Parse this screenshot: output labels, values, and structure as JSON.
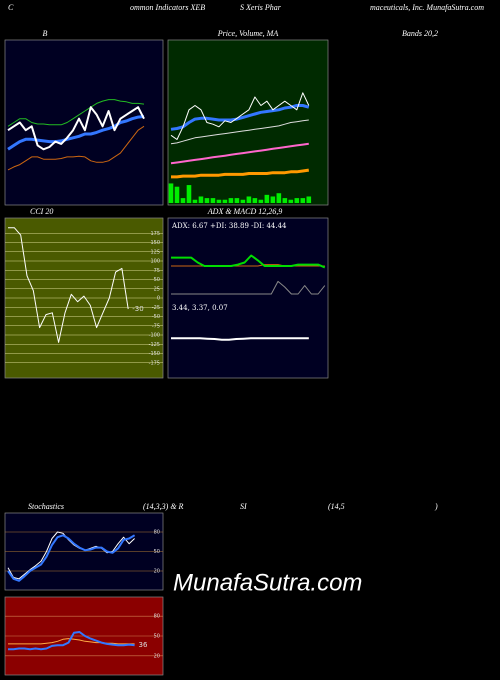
{
  "header": [
    "C",
    "ommon Indicators XEB",
    "S Xeris Phar",
    "maceuticals, Inc. MunafaSutra.com"
  ],
  "watermark": "MunafaSutra.com",
  "chart_data": [
    {
      "type": "line",
      "title_parts": [
        "B",
        "Bands 20,2"
      ],
      "background": "#000022",
      "ylim": [
        2,
        4
      ],
      "series": [
        {
          "color": "#22bb22",
          "width": 1,
          "values": [
            2.95,
            3.0,
            3.05,
            3.05,
            3.0,
            2.98,
            2.98,
            2.97,
            2.97,
            2.97,
            3.0,
            3.05,
            3.1,
            3.15,
            3.2,
            3.25,
            3.28,
            3.3,
            3.3,
            3.28,
            3.27,
            3.25,
            3.25,
            3.24
          ]
        },
        {
          "color": "#3377ff",
          "width": 3,
          "values": [
            2.65,
            2.7,
            2.75,
            2.78,
            2.78,
            2.77,
            2.76,
            2.75,
            2.75,
            2.76,
            2.78,
            2.8,
            2.82,
            2.85,
            2.85,
            2.87,
            2.9,
            2.92,
            2.95,
            3.0,
            3.02,
            3.05,
            3.07,
            3.08
          ]
        },
        {
          "color": "#cc6611",
          "width": 1,
          "values": [
            2.38,
            2.42,
            2.45,
            2.5,
            2.55,
            2.55,
            2.52,
            2.52,
            2.52,
            2.53,
            2.55,
            2.55,
            2.56,
            2.55,
            2.5,
            2.48,
            2.48,
            2.5,
            2.55,
            2.6,
            2.7,
            2.8,
            2.9,
            2.95
          ]
        },
        {
          "color": "#ffffff",
          "width": 2,
          "values": [
            2.9,
            2.95,
            3.0,
            2.9,
            2.95,
            2.7,
            2.65,
            2.68,
            2.75,
            2.72,
            2.8,
            2.9,
            3.05,
            2.9,
            3.2,
            3.1,
            2.95,
            3.15,
            2.9,
            3.05,
            3.1,
            3.15,
            3.2,
            3.05
          ]
        }
      ]
    },
    {
      "type": "line",
      "title_parts": [
        "Price, Volume, MA"
      ],
      "background": "#002a00",
      "ylim": [
        1.8,
        3.6
      ],
      "y2lim": [
        0,
        100
      ],
      "series": [
        {
          "color": "#ff9900",
          "width": 3,
          "values": [
            2.06,
            2.06,
            2.07,
            2.07,
            2.07,
            2.08,
            2.08,
            2.08,
            2.08,
            2.09,
            2.09,
            2.09,
            2.09,
            2.1,
            2.1,
            2.1,
            2.1,
            2.11,
            2.11,
            2.11,
            2.12,
            2.12,
            2.13,
            2.14
          ]
        },
        {
          "color": "#ff66cc",
          "width": 2,
          "values": [
            2.22,
            2.23,
            2.24,
            2.25,
            2.26,
            2.27,
            2.28,
            2.29,
            2.3,
            2.31,
            2.32,
            2.33,
            2.34,
            2.35,
            2.36,
            2.37,
            2.38,
            2.39,
            2.4,
            2.41,
            2.42,
            2.43,
            2.44,
            2.45
          ]
        },
        {
          "color": "#dddddd",
          "width": 1,
          "values": [
            2.45,
            2.46,
            2.48,
            2.5,
            2.52,
            2.53,
            2.54,
            2.55,
            2.56,
            2.57,
            2.58,
            2.59,
            2.6,
            2.61,
            2.62,
            2.63,
            2.64,
            2.65,
            2.66,
            2.68,
            2.7,
            2.71,
            2.72,
            2.73
          ]
        },
        {
          "color": "#3377ff",
          "width": 3,
          "values": [
            2.62,
            2.63,
            2.65,
            2.7,
            2.74,
            2.75,
            2.75,
            2.74,
            2.73,
            2.73,
            2.73,
            2.74,
            2.76,
            2.78,
            2.8,
            2.82,
            2.83,
            2.84,
            2.85,
            2.87,
            2.88,
            2.9,
            2.9,
            2.88
          ]
        },
        {
          "color": "#ffffff",
          "width": 1,
          "values": [
            2.55,
            2.5,
            2.65,
            2.85,
            2.9,
            2.85,
            2.7,
            2.68,
            2.65,
            2.72,
            2.7,
            2.75,
            2.8,
            2.85,
            3.0,
            2.9,
            2.95,
            2.85,
            2.9,
            2.95,
            2.9,
            2.85,
            3.05,
            2.9
          ]
        },
        {
          "type": "bar",
          "axis": "y2",
          "color": "#00ee00",
          "values": [
            12,
            10,
            3,
            11,
            2,
            4,
            3,
            3,
            2,
            2,
            3,
            3,
            2,
            4,
            3,
            2,
            5,
            4,
            6,
            3,
            2,
            3,
            3,
            4
          ]
        }
      ]
    },
    {
      "type": "line",
      "title_parts": [
        "CCI 20"
      ],
      "background": "#4a5a00",
      "ylim": [
        -200,
        200
      ],
      "grid": true,
      "label_last": true,
      "yticks": [
        175,
        150,
        125,
        100,
        75,
        50,
        25,
        0,
        -25,
        -50,
        -75,
        -100,
        -125,
        -150,
        -175
      ],
      "series": [
        {
          "color": "#ffffff",
          "width": 1,
          "values": [
            190,
            190,
            170,
            60,
            20,
            -80,
            -45,
            -40,
            -120,
            -40,
            10,
            -10,
            5,
            -20,
            -80,
            -40,
            0,
            70,
            80,
            -30
          ]
        }
      ]
    },
    {
      "type": "line",
      "title_parts": [
        "ADX  & MACD 12,26,9"
      ],
      "annotation": "ADX: 6.67 +DI: 38.89 -DI: 44.44",
      "background": "#000022",
      "ylim": [
        0,
        100
      ],
      "series": [
        {
          "color": "#888888",
          "width": 1,
          "values": [
            0,
            0,
            0,
            0,
            0,
            0,
            0,
            0,
            0,
            0,
            0,
            0,
            0,
            0,
            0,
            0,
            18,
            10,
            0,
            0,
            12,
            0,
            0,
            12
          ]
        },
        {
          "color": "#cc6611",
          "width": 1,
          "values": [
            40,
            40,
            40,
            40,
            40,
            40,
            40,
            40,
            40,
            40,
            40,
            40,
            40,
            40,
            42,
            42,
            42,
            40,
            40,
            40,
            40,
            40,
            40,
            40
          ]
        },
        {
          "color": "#00dd00",
          "width": 2,
          "values": [
            52,
            52,
            52,
            52,
            45,
            40,
            40,
            40,
            40,
            40,
            42,
            45,
            55,
            48,
            40,
            40,
            40,
            40,
            40,
            42,
            42,
            42,
            42,
            38
          ]
        }
      ]
    },
    {
      "type": "line",
      "annotation": "3.44, 3.37, 0.07",
      "background": "#000022",
      "ylim": [
        -5,
        5
      ],
      "series": [
        {
          "color": "#cc6611",
          "width": 1,
          "values": [
            0.1,
            0.1,
            0.1,
            0.1,
            0.1,
            0.05,
            0.0,
            -0.1,
            -0.1,
            0.0,
            0.05,
            0.1,
            0.1,
            0.1,
            0.1,
            0.1,
            0.1,
            0.1,
            0.1,
            0.1
          ]
        },
        {
          "color": "#ffffff",
          "width": 2,
          "values": [
            0.1,
            0.1,
            0.1,
            0.1,
            0.1,
            0.05,
            0.0,
            -0.1,
            -0.1,
            0.0,
            0.05,
            0.1,
            0.1,
            0.1,
            0.1,
            0.1,
            0.1,
            0.1,
            0.1,
            0.1
          ]
        }
      ]
    },
    {
      "type": "line",
      "title_parts": [
        "Stochastics",
        "(14,3,3) & R",
        "SI",
        "(14,5",
        ")"
      ],
      "background": "#000022",
      "ylim": [
        0,
        100
      ],
      "grid": true,
      "yticks": [
        80,
        50,
        20
      ],
      "series": [
        {
          "color": "#ffffff",
          "width": 1,
          "values": [
            25,
            10,
            8,
            15,
            22,
            28,
            35,
            50,
            70,
            80,
            78,
            68,
            60,
            55,
            52,
            55,
            58,
            55,
            48,
            50,
            62,
            72,
            62,
            70
          ]
        },
        {
          "color": "#3377ff",
          "width": 2,
          "values": [
            20,
            8,
            5,
            12,
            20,
            25,
            30,
            42,
            60,
            72,
            75,
            70,
            62,
            56,
            52,
            53,
            56,
            56,
            50,
            48,
            55,
            68,
            70,
            75
          ]
        }
      ]
    },
    {
      "type": "line",
      "background": "#8b0000",
      "ylim": [
        0,
        100
      ],
      "grid": true,
      "yticks": [
        80,
        50,
        20
      ],
      "label_last": true,
      "series": [
        {
          "color": "#ffaa44",
          "width": 1,
          "values": [
            38,
            38,
            38,
            38,
            38,
            38,
            38,
            39,
            40,
            42,
            45,
            46,
            45,
            44,
            42,
            41,
            40,
            40,
            39,
            39,
            38,
            38,
            38,
            38
          ]
        },
        {
          "color": "#3377ff",
          "width": 2,
          "values": [
            30,
            30,
            31,
            31,
            30,
            31,
            30,
            31,
            35,
            36,
            36,
            40,
            55,
            56,
            50,
            46,
            43,
            40,
            38,
            37,
            36,
            36,
            37,
            36
          ]
        }
      ]
    }
  ]
}
